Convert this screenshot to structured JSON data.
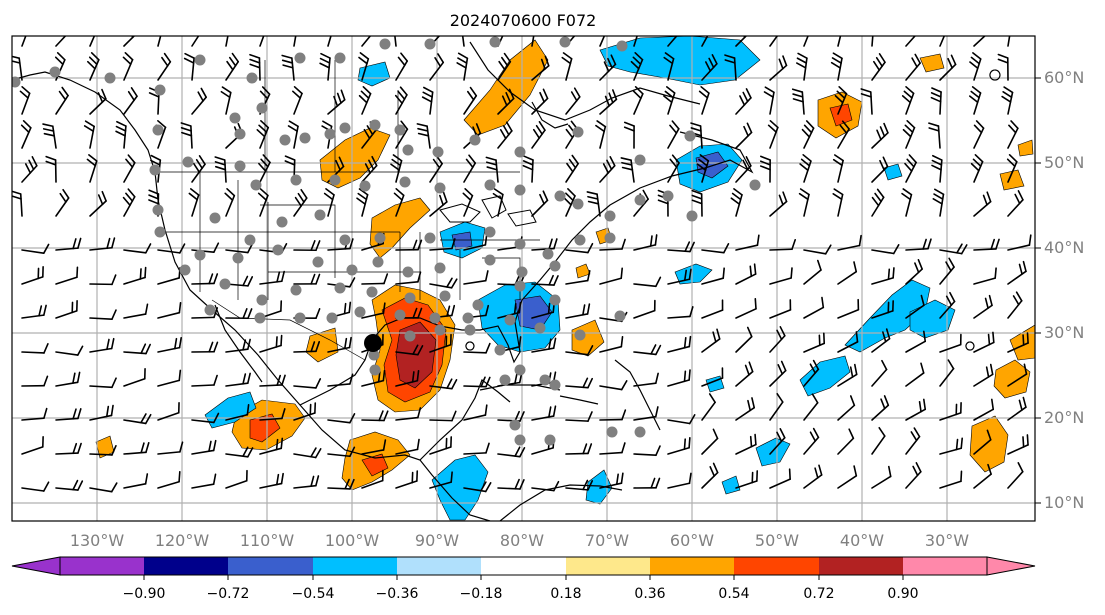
{
  "title": "2024070600 F072",
  "latitude_labels": [
    "60°N",
    "50°N",
    "40°N",
    "30°N",
    "20°N",
    "10°N"
  ],
  "longitude_labels": [
    "130°W",
    "120°W",
    "110°W",
    "100°W",
    "90°W",
    "80°W",
    "70°W",
    "60°W",
    "50°W",
    "40°W",
    "30°W"
  ],
  "colorbar": {
    "tick_labels": [
      "−0.90",
      "−0.72",
      "−0.54",
      "−0.36",
      "−0.18",
      "0.18",
      "0.36",
      "0.54",
      "0.72",
      "0.90"
    ],
    "colors": [
      "#9932cc",
      "#00008b",
      "#3a5fcd",
      "#00bfff",
      "#b0e0fc",
      "#ffffff",
      "#fee88b",
      "#ffa500",
      "#ff4500",
      "#b22222",
      "#ff88aa"
    ]
  },
  "map": {
    "projection": "plate-carree",
    "extent_lon": [
      -138,
      -20
    ],
    "extent_lat": [
      8,
      65
    ],
    "gridlines": true,
    "gridline_color": "#b0b0b0",
    "features": [
      "coastlines",
      "country borders",
      "US state borders",
      "wind barbs",
      "gray dots"
    ],
    "field_colors": {
      "positive": [
        "#ffa500",
        "#ff4500",
        "#b22222"
      ],
      "negative": [
        "#00bfff",
        "#3a5fcd"
      ]
    }
  }
}
